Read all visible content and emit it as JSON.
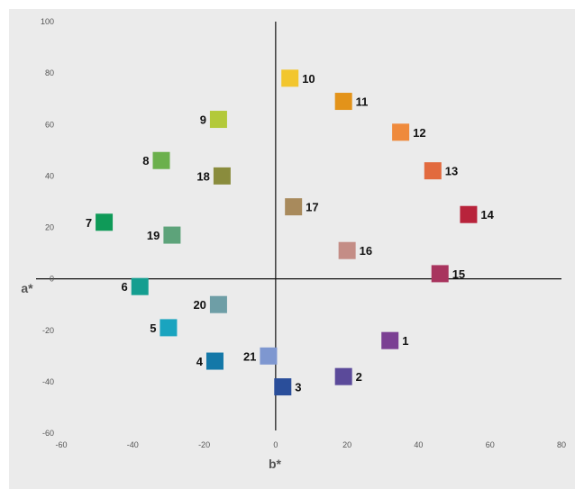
{
  "chart_data": {
    "type": "scatter",
    "title": "",
    "xlabel": "b*",
    "ylabel": "a*",
    "xlim": [
      -60,
      80
    ],
    "ylim": [
      -60,
      100
    ],
    "x_ticks": [
      "-60",
      "-40",
      "-20",
      "0",
      "20",
      "40",
      "60",
      "80"
    ],
    "y_ticks": [
      "100",
      "80",
      "60",
      "40",
      "20",
      "0",
      "-20",
      "-40",
      "-60"
    ],
    "grid": false,
    "marker": "square",
    "points": [
      {
        "label": "1",
        "x": 32,
        "y": -24,
        "label_side": "right",
        "color": "#7b3f93"
      },
      {
        "label": "2",
        "x": 19,
        "y": -38,
        "label_side": "right",
        "color": "#5b4a9a"
      },
      {
        "label": "3",
        "x": 2,
        "y": -42,
        "label_side": "right",
        "color": "#2a4e9a"
      },
      {
        "label": "4",
        "x": -17,
        "y": -32,
        "label_side": "left",
        "color": "#1478a8"
      },
      {
        "label": "5",
        "x": -30,
        "y": -19,
        "label_side": "left",
        "color": "#1aa4bf"
      },
      {
        "label": "6",
        "x": -38,
        "y": -3,
        "label_side": "left",
        "color": "#149e90"
      },
      {
        "label": "7",
        "x": -48,
        "y": 22,
        "label_side": "left",
        "color": "#0f9a58"
      },
      {
        "label": "8",
        "x": -32,
        "y": 46,
        "label_side": "left",
        "color": "#6bb04c"
      },
      {
        "label": "9",
        "x": -16,
        "y": 62,
        "label_side": "left",
        "color": "#b3c93a"
      },
      {
        "label": "10",
        "x": 4,
        "y": 78,
        "label_side": "right",
        "color": "#f2c62e"
      },
      {
        "label": "11",
        "x": 19,
        "y": 69,
        "label_side": "right",
        "color": "#e3931a"
      },
      {
        "label": "12",
        "x": 35,
        "y": 57,
        "label_side": "right",
        "color": "#ef8a3c"
      },
      {
        "label": "13",
        "x": 44,
        "y": 42,
        "label_side": "right",
        "color": "#e26a3e"
      },
      {
        "label": "14",
        "x": 54,
        "y": 25,
        "label_side": "right",
        "color": "#b8233b"
      },
      {
        "label": "15",
        "x": 46,
        "y": 2,
        "label_side": "right",
        "color": "#a8345e"
      },
      {
        "label": "16",
        "x": 20,
        "y": 11,
        "label_side": "right",
        "color": "#c48d86"
      },
      {
        "label": "17",
        "x": 5,
        "y": 28,
        "label_side": "right",
        "color": "#a88a5c"
      },
      {
        "label": "18",
        "x": -15,
        "y": 40,
        "label_side": "left",
        "color": "#8a8c3d"
      },
      {
        "label": "19",
        "x": -29,
        "y": 17,
        "label_side": "left",
        "color": "#5da37a"
      },
      {
        "label": "20",
        "x": -16,
        "y": -10,
        "label_side": "left",
        "color": "#6e9ea6"
      },
      {
        "label": "21",
        "x": -2,
        "y": -30,
        "label_side": "left",
        "color": "#7e97d0"
      }
    ]
  }
}
